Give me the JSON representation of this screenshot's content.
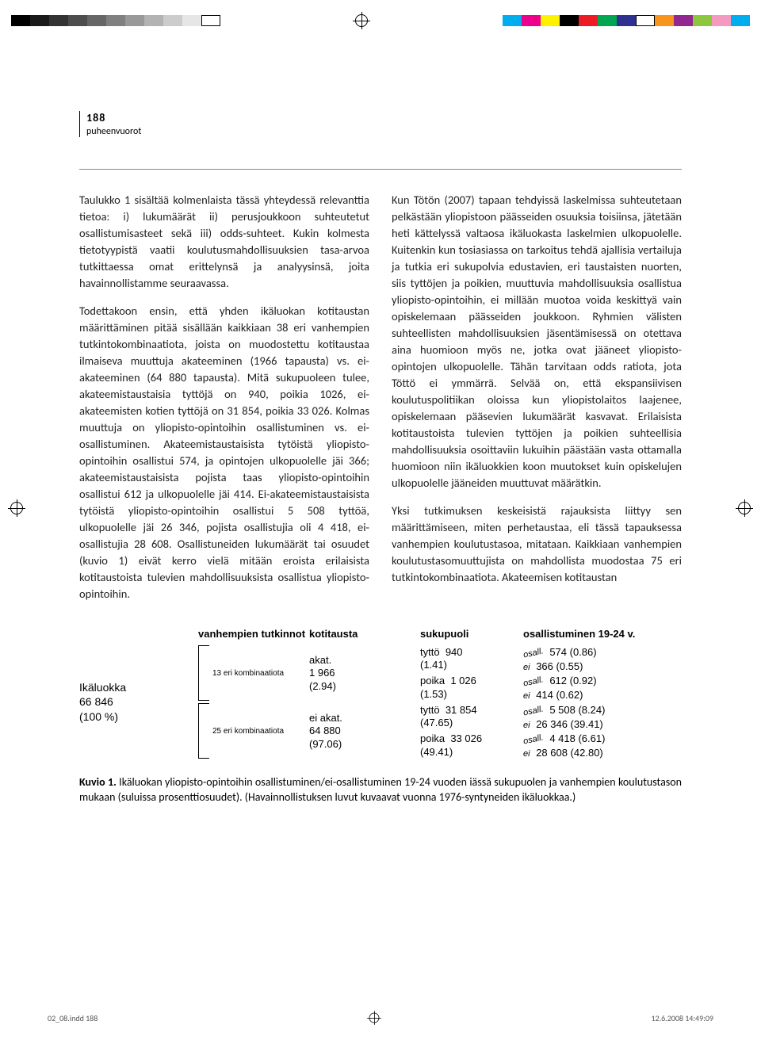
{
  "printer_marks": {
    "greyscale": [
      "#000000",
      "#1a1a1a",
      "#333333",
      "#4d4d4d",
      "#666666",
      "#808080",
      "#999999",
      "#b3b3b3",
      "#cccccc",
      "#e6e6e6",
      "#ffffff"
    ],
    "colors": [
      "#00aeef",
      "#ec008c",
      "#fff200",
      "#000000",
      "#ed1c24",
      "#00a651",
      "#2e3192",
      "#ffffff",
      "#f7941d",
      "#92278f",
      "#8dc63f",
      "#f49ac1",
      "#00adef"
    ]
  },
  "header": {
    "page_number": "188",
    "section": "puheenvuorot"
  },
  "body": {
    "p1": "Taulukko 1 sisältää kolmenlaista tässä yhteydessä relevanttia tietoa: i) lukumäärät ii) perusjoukkoon suhteutetut osallistumisasteet sekä iii) odds-suhteet. Kukin kolmesta tietotyypistä vaatii koulutusmahdollisuuksien tasa-arvoa tutkittaessa omat erittelynsä ja analyysinsä, joita havainnollistamme seuraavassa.",
    "p2": "Todettakoon ensin, että yhden ikäluokan kotitaustan määrittäminen pitää sisällään kaikkiaan 38 eri vanhempien tutkintokombinaatiota, joista on muodostettu kotitaustaa ilmaiseva muuttuja akateeminen (1966 tapausta) vs. ei-akateeminen (64 880 tapausta). Mitä sukupuoleen tulee, akateemistaustaisia tyttöjä on 940, poikia 1026, ei-akateemisten kotien tyttöjä on 31 854, poikia 33 026. Kolmas muuttuja on yliopisto-opintoihin osallistuminen vs. ei-osallistuminen. Akateemistaustaisista tytöistä yliopisto-opintoihin osallistui 574, ja opintojen ulkopuolelle jäi 366; akateemistaustaisista pojista taas yliopisto-opintoihin osallistui 612 ja ulkopuolelle jäi 414. Ei-akateemistaustaisista tytöistä yliopisto-opintoihin osallistui 5 508 tyttöä, ulkopuolelle jäi 26 346, pojista osallistujia oli 4 418, ei-osallistujia 28 608. Osallistuneiden lukumäärät tai osuudet (kuvio 1) eivät kerro vielä mitään eroista erilaisista kotitaustoista tulevien mahdollisuuksista osallistua yliopisto-opintoihin.",
    "p3": "Kun Tötön (2007) tapaan tehdyissä laskelmissa suhteutetaan pelkästään yliopistoon päässeiden osuuksia toisiinsa, jätetään heti kättelyssä valtaosa ikäluokasta laskelmien ulkopuolelle. Kuitenkin kun tosiasiassa on tarkoitus tehdä ajallisia vertailuja ja tutkia eri sukupolvia edustavien, eri taustaisten nuorten, siis tyttöjen ja poikien, muuttuvia mahdollisuuksia osallistua yliopisto-opintoihin, ei millään muotoa voida keskittyä vain opiskelemaan päässeiden joukkoon. Ryhmien välisten suhteellisten mahdollisuuksien jäsentämisessä on otettava aina huomioon myös ne, jotka ovat jääneet yliopisto-opintojen ulkopuolelle. Tähän tarvitaan odds ratiota, jota Töttö ei ymmärrä. Selvää on, että ekspansiivisen koulutuspolitiikan oloissa kun yliopistolaitos laajenee, opiskelemaan pääsevien lukumäärät kasvavat. Erilaisista kotitaustoista tulevien tyttöjen ja poikien suhteellisia mahdollisuuksia osoittaviin lukuihin päästään vasta ottamalla huomioon niin ikäluokkien koon muutokset kuin opiskelujen ulkopuolelle jääneiden muuttuvat määrätkin.",
    "p4": "Yksi tutkimuksen keskeisistä rajauksista liittyy sen määrittämiseen, miten perhetaustaa, eli tässä tapauksessa vanhempien koulutustasoa, mitataan. Kaikkiaan vanhempien koulutustasomuuttujista on mahdollista muodostaa 75 eri tutkintokombinaatiota. Akateemisen kotitaustan"
  },
  "figure": {
    "type": "tree",
    "font_family": "Arial",
    "headers": {
      "c1": "",
      "c2": "vanhempien tutkinnot",
      "c3": "kotitausta",
      "c4": "sukupuoli",
      "c5": "osallistuminen 19-24 v."
    },
    "root": {
      "label": "Ikäluokka",
      "n": "66 846",
      "pct": "(100 %)"
    },
    "comb_top": "13 eri kombinaatiota",
    "comb_bottom": "25 eri kombinaatiota",
    "branch_labels": {
      "akat": "akat.",
      "akat_n": "1 966",
      "akat_pct": "(2.94)",
      "eiakat": "ei akat.",
      "eiakat_n": "64 880",
      "eiakat_pct": "(97.06)",
      "tytto": "tyttö",
      "poika": "poika",
      "osall": "osall.",
      "ei": "ei"
    },
    "gender_nodes": [
      {
        "n": "940",
        "pct": "(1.41)"
      },
      {
        "n": "1 026",
        "pct": "(1.53)"
      },
      {
        "n": "31 854",
        "pct": "(47.65)"
      },
      {
        "n": "33 026",
        "pct": "(49.41)"
      }
    ],
    "results": [
      {
        "text": "574 (0.86)"
      },
      {
        "text": "366 (0.55)"
      },
      {
        "text": "612 (0.92)"
      },
      {
        "text": "414 (0.62)"
      },
      {
        "text": "5 508 (8.24)"
      },
      {
        "text": "26 346 (39.41)"
      },
      {
        "text": "4 418 (6.61)"
      },
      {
        "text": "28 608 (42.80)"
      }
    ],
    "caption_label": "Kuvio 1.",
    "caption": " Ikäluokan yliopisto-opintoihin osallistuminen/ei-osallistuminen 19-24 vuoden iässä sukupuolen ja vanhempien koulutustason mukaan (suluissa prosenttiosuudet). (Havainnollistuksen luvut kuvaavat vuonna 1976-syntyneiden ikäluokkaa.)"
  },
  "footer": {
    "left": "02_08.indd   188",
    "right": "12.6.2008   14:49:09"
  }
}
